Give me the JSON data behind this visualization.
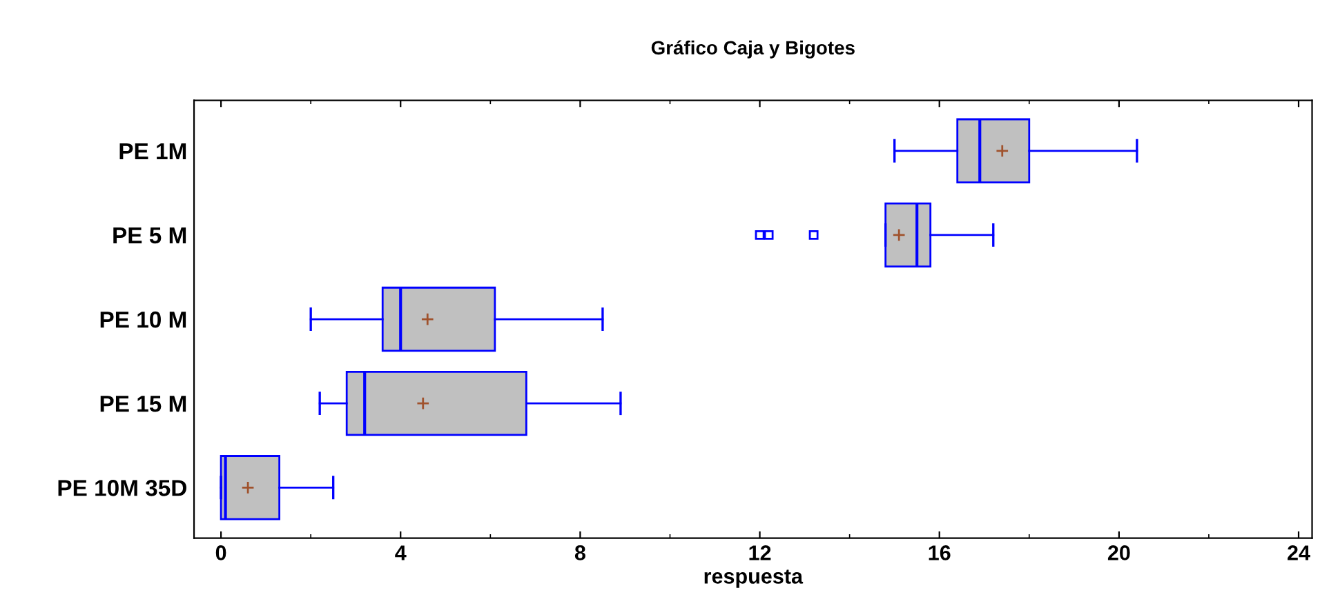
{
  "chart_data": {
    "type": "box",
    "orientation": "horizontal",
    "title": "Gráfico Caja y Bigotes",
    "xlabel": "respuesta",
    "categories": [
      "PE 1M",
      "PE 5 M",
      "PE 10 M",
      "PE 15 M",
      "PE 10M 35D"
    ],
    "boxes": [
      {
        "low": 15.0,
        "q1": 16.4,
        "median": 16.9,
        "q3": 18.0,
        "high": 20.4,
        "mean": 17.4
      },
      {
        "low": 14.8,
        "q1": 14.8,
        "median": 15.5,
        "q3": 15.8,
        "high": 17.2,
        "mean": 15.1,
        "outliers": [
          12.0,
          12.2,
          13.2
        ]
      },
      {
        "low": 2.0,
        "q1": 3.6,
        "median": 4.0,
        "q3": 6.1,
        "high": 8.5,
        "mean": 4.6
      },
      {
        "low": 2.2,
        "q1": 2.8,
        "median": 3.2,
        "q3": 6.8,
        "high": 8.9,
        "mean": 4.5
      },
      {
        "low": 0.0,
        "q1": 0.0,
        "median": 0.1,
        "q3": 1.3,
        "high": 2.5,
        "mean": 0.6
      }
    ],
    "color": "#c0c0c0",
    "xlim": [
      -0.6,
      24.3
    ],
    "xticks": [
      0,
      4,
      8,
      12,
      16,
      20,
      24
    ],
    "grid": false,
    "legend": false
  }
}
